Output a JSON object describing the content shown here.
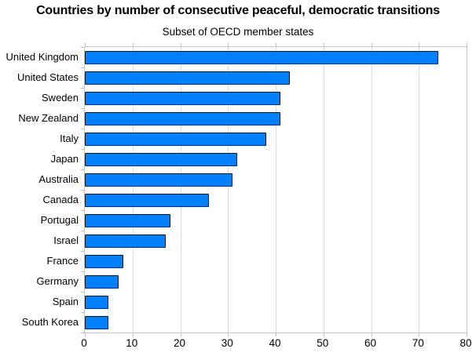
{
  "title": "Countries by number of consecutive peaceful, democratic transitions",
  "subtitle": "Subset of OECD member states",
  "chart_data": {
    "type": "bar",
    "orientation": "horizontal",
    "title": "Countries by number of consecutive peaceful, democratic transitions",
    "subtitle": "Subset of OECD member states",
    "categories": [
      "United Kingdom",
      "United States",
      "Sweden",
      "New Zealand",
      "Italy",
      "Japan",
      "Australia",
      "Canada",
      "Portugal",
      "Israel",
      "France",
      "Germany",
      "Spain",
      "South Korea"
    ],
    "values": [
      74,
      43,
      41,
      41,
      38,
      32,
      31,
      26,
      18,
      17,
      8,
      7,
      5,
      5
    ],
    "xlabel": "",
    "ylabel": "",
    "xlim": [
      0,
      80
    ],
    "xticks": [
      0,
      10,
      20,
      30,
      40,
      50,
      60,
      70,
      80
    ],
    "grid": true,
    "legend": false,
    "colors": {
      "bar_fill": "#0081fb",
      "bar_border": "#15171d",
      "gridline": "#dcdcdc",
      "frame": "#c6c6c6",
      "tick": "#bdbdbd",
      "text": "#000000",
      "background": "#ffffff"
    }
  }
}
